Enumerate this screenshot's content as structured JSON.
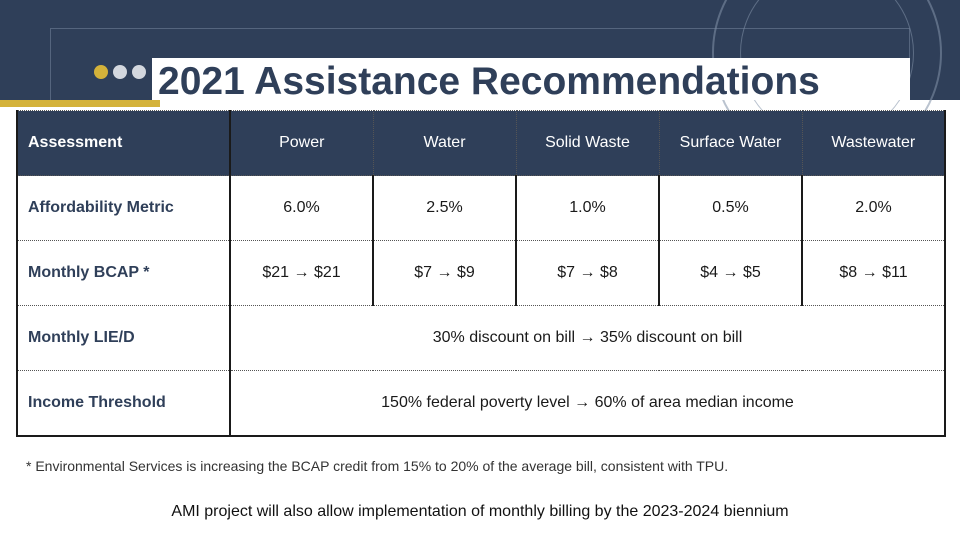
{
  "slide": {
    "title": "2021 Assistance Recommendations",
    "colors": {
      "navy": "#2f3f59",
      "gold": "#d4b23a"
    }
  },
  "table": {
    "columns": [
      "Assessment",
      "Power",
      "Water",
      "Solid Waste",
      "Surface Water",
      "Wastewater"
    ],
    "affordability": {
      "label": "Affordability Metric",
      "values": [
        "6.0%",
        "2.5%",
        "1.0%",
        "0.5%",
        "2.0%"
      ]
    },
    "bcap": {
      "label": "Monthly BCAP *",
      "values": [
        "$21 → $21",
        "$7 → $9",
        "$7 → $8",
        "$4 → $5",
        "$8 → $11"
      ]
    },
    "liead": {
      "label": "Monthly LIE/D",
      "value": "30% discount on bill → 35% discount on bill"
    },
    "income": {
      "label": "Income Threshold",
      "value": "150% federal poverty level → 60% of area median income"
    }
  },
  "footnote": "* Environmental Services is increasing the BCAP credit from 15% to 20% of the average bill, consistent with TPU.",
  "ami_note": "AMI project will also allow implementation of monthly billing by the 2023-2024 biennium"
}
